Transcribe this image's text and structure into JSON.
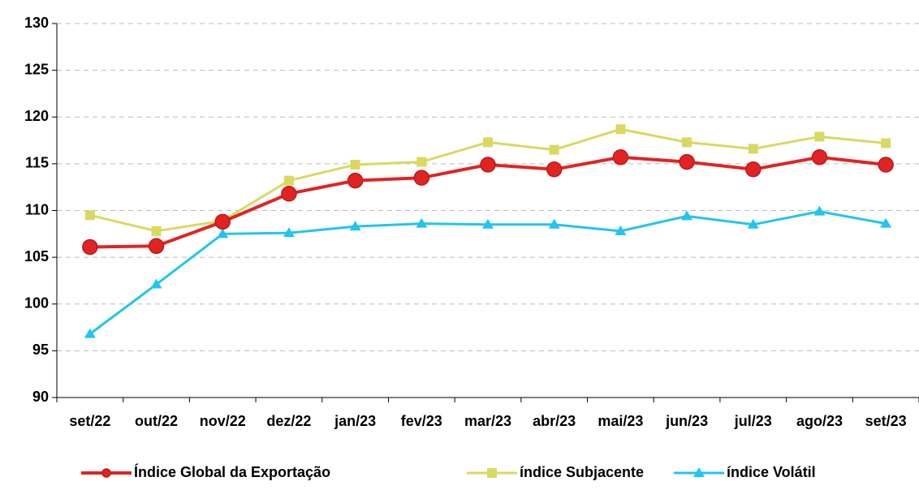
{
  "chart_data": {
    "type": "line",
    "categories": [
      "set/22",
      "out/22",
      "nov/22",
      "dez/22",
      "jan/23",
      "fev/23",
      "mar/23",
      "abr/23",
      "mai/23",
      "jun/23",
      "jul/23",
      "ago/23",
      "set/23"
    ],
    "series": [
      {
        "name": "Índice Global da Exportação",
        "color": "#e02424",
        "marker": "circle",
        "values": [
          106.1,
          106.2,
          108.8,
          111.8,
          113.2,
          113.5,
          114.9,
          114.4,
          115.7,
          115.2,
          114.4,
          115.7,
          114.9
        ]
      },
      {
        "name": "índice Subjacente",
        "color": "#d9d962",
        "marker": "square",
        "values": [
          109.5,
          107.8,
          108.9,
          113.2,
          114.9,
          115.2,
          117.3,
          116.5,
          118.7,
          117.3,
          116.6,
          117.9,
          117.2
        ]
      },
      {
        "name": "índice Volátil",
        "color": "#22c4f0",
        "marker": "triangle",
        "values": [
          96.8,
          102.1,
          107.5,
          107.6,
          108.3,
          108.6,
          108.5,
          108.5,
          107.8,
          109.4,
          108.5,
          109.9,
          108.6
        ]
      }
    ],
    "ylim": [
      90,
      130
    ],
    "yticks": [
      90,
      95,
      100,
      105,
      110,
      115,
      120,
      125,
      130
    ],
    "grid": true,
    "legend": "bottom"
  }
}
